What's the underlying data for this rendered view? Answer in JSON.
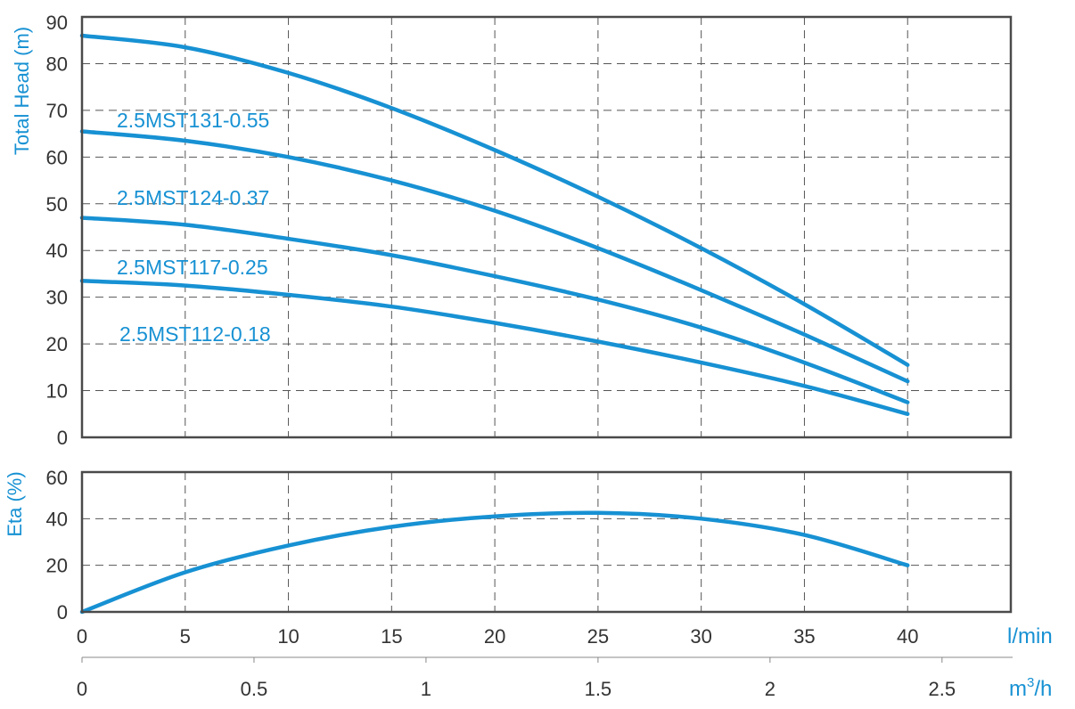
{
  "colors": {
    "accent": "#1791d3",
    "frame": "#4a4a4a",
    "grid": "#555555",
    "tick_text": "#333333"
  },
  "chart_data": [
    {
      "type": "line",
      "ylabel": "Total Head (m)",
      "xlim": [
        0,
        45
      ],
      "ylim": [
        0,
        90
      ],
      "x_ticks": [
        "0",
        "5",
        "10",
        "15",
        "20",
        "25",
        "30",
        "35",
        "40"
      ],
      "y_ticks": [
        "0",
        "10",
        "20",
        "30",
        "40",
        "50",
        "60",
        "70",
        "80",
        "90"
      ],
      "grid": true,
      "series": [
        {
          "name": "",
          "x": [
            0,
            5,
            10,
            15,
            20,
            25,
            30,
            35,
            40
          ],
          "y": [
            86,
            83.5,
            78,
            70.5,
            61.5,
            51.5,
            40.5,
            28.5,
            15.5
          ]
        },
        {
          "name": "2.5MST131-0.55",
          "x": [
            0,
            5,
            10,
            15,
            20,
            25,
            30,
            35,
            40
          ],
          "y": [
            65.5,
            63.5,
            60,
            55,
            48.5,
            40.5,
            31.5,
            22,
            12
          ]
        },
        {
          "name": "2.5MST124-0.37",
          "x": [
            0,
            5,
            10,
            15,
            20,
            25,
            30,
            35,
            40
          ],
          "y": [
            47,
            45.5,
            42.5,
            39,
            34.5,
            29.5,
            23.5,
            16,
            7.5
          ]
        },
        {
          "name": "2.5MST117-0.25",
          "x": [
            0,
            5,
            10,
            15,
            20,
            25,
            30,
            35,
            40
          ],
          "y": [
            33.5,
            32.5,
            30.5,
            28,
            24.5,
            20.5,
            16,
            11,
            5
          ]
        }
      ],
      "annotations": [
        "2.5MST131-0.55",
        "2.5MST124-0.37",
        "2.5MST117-0.25",
        "2.5MST112-0.18"
      ]
    },
    {
      "type": "line",
      "ylabel": "Eta (%)",
      "xlim": [
        0,
        45
      ],
      "ylim": [
        0,
        60
      ],
      "y_ticks": [
        "0",
        "20",
        "40",
        "60"
      ],
      "grid": true,
      "series": [
        {
          "name": "",
          "x": [
            0,
            5,
            10,
            15,
            20,
            25,
            30,
            35,
            40
          ],
          "y": [
            0,
            17,
            28.5,
            36.5,
            41,
            42.5,
            40,
            33,
            20
          ]
        }
      ]
    }
  ],
  "axes": {
    "x_lmin": {
      "unit": "l/min",
      "ticks": [
        "0",
        "5",
        "10",
        "15",
        "20",
        "25",
        "30",
        "35",
        "40"
      ]
    },
    "x_m3h": {
      "unit_base": "m",
      "unit_sup": "3",
      "unit_tail": "/h",
      "ticks": [
        "0",
        "0.5",
        "1",
        "1.5",
        "2",
        "2.5"
      ],
      "max": 2.7
    }
  }
}
